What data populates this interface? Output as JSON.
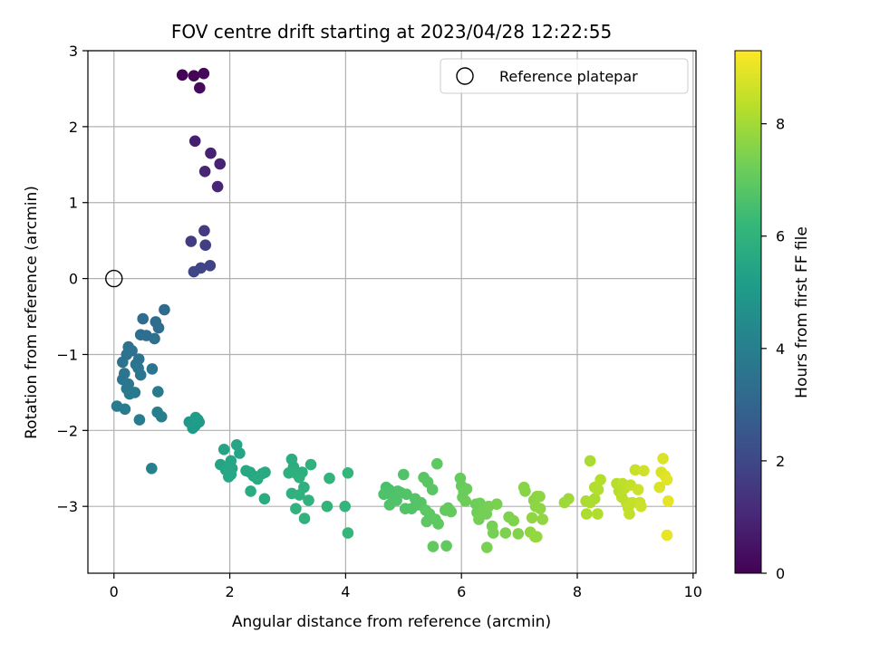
{
  "chart_data": {
    "type": "scatter",
    "title": "FOV centre drift starting at 2023/04/28 12:22:55",
    "xlabel": "Angular distance from reference (arcmin)",
    "ylabel": "Rotation from reference (arcmin)",
    "xlim": [
      -0.45,
      10.05
    ],
    "ylim": [
      -3.88,
      3.0
    ],
    "x_ticks": [
      0,
      2,
      4,
      6,
      8,
      10
    ],
    "y_ticks": [
      -3,
      -2,
      -1,
      0,
      1,
      2,
      3
    ],
    "x_tick_labels": [
      "0",
      "2",
      "4",
      "6",
      "8",
      "10"
    ],
    "y_tick_labels": [
      "−3",
      "−2",
      "−1",
      "0",
      "1",
      "2",
      "3"
    ],
    "grid": true,
    "legend": {
      "position": "top-right",
      "entries": [
        "Reference platepar"
      ]
    },
    "reference_point": {
      "x": 0,
      "y": 0
    },
    "colorbar": {
      "label": "Hours from first FF file",
      "range": [
        0,
        9.3
      ],
      "ticks": [
        0,
        2,
        4,
        6,
        8
      ],
      "tick_labels": [
        "0",
        "2",
        "4",
        "6",
        "8"
      ],
      "colormap": "viridis",
      "colors": [
        "#440154",
        "#482878",
        "#3e4a89",
        "#31688e",
        "#26828e",
        "#1f9e89",
        "#35b779",
        "#6ece58",
        "#b5de2b",
        "#fde725"
      ]
    },
    "points": [
      {
        "x": 1.18,
        "y": 2.68,
        "t": 0.05
      },
      {
        "x": 1.38,
        "y": 2.67,
        "t": 0.1
      },
      {
        "x": 1.55,
        "y": 2.7,
        "t": 0.15
      },
      {
        "x": 1.48,
        "y": 2.51,
        "t": 0.3
      },
      {
        "x": 1.4,
        "y": 1.81,
        "t": 0.8
      },
      {
        "x": 1.67,
        "y": 1.65,
        "t": 0.85
      },
      {
        "x": 1.83,
        "y": 1.51,
        "t": 0.9
      },
      {
        "x": 1.57,
        "y": 1.41,
        "t": 0.95
      },
      {
        "x": 1.79,
        "y": 1.21,
        "t": 1.0
      },
      {
        "x": 1.56,
        "y": 0.63,
        "t": 1.6
      },
      {
        "x": 1.33,
        "y": 0.49,
        "t": 1.65
      },
      {
        "x": 1.58,
        "y": 0.44,
        "t": 1.7
      },
      {
        "x": 1.66,
        "y": 0.17,
        "t": 1.85
      },
      {
        "x": 1.5,
        "y": 0.14,
        "t": 1.9
      },
      {
        "x": 1.38,
        "y": 0.09,
        "t": 1.95
      },
      {
        "x": 0.87,
        "y": -0.41,
        "t": 3.2
      },
      {
        "x": 0.5,
        "y": -0.53,
        "t": 3.25
      },
      {
        "x": 0.72,
        "y": -0.57,
        "t": 3.3
      },
      {
        "x": 0.77,
        "y": -0.65,
        "t": 3.3
      },
      {
        "x": 0.46,
        "y": -0.74,
        "t": 3.35
      },
      {
        "x": 0.56,
        "y": -0.75,
        "t": 3.35
      },
      {
        "x": 0.7,
        "y": -0.79,
        "t": 3.4
      },
      {
        "x": 0.25,
        "y": -0.9,
        "t": 3.45
      },
      {
        "x": 0.31,
        "y": -0.95,
        "t": 3.5
      },
      {
        "x": 0.22,
        "y": -1.0,
        "t": 3.5
      },
      {
        "x": 0.43,
        "y": -1.06,
        "t": 3.5
      },
      {
        "x": 0.15,
        "y": -1.1,
        "t": 3.55
      },
      {
        "x": 0.38,
        "y": -1.13,
        "t": 3.55
      },
      {
        "x": 0.42,
        "y": -1.18,
        "t": 3.6
      },
      {
        "x": 0.66,
        "y": -1.19,
        "t": 3.6
      },
      {
        "x": 0.18,
        "y": -1.25,
        "t": 3.6
      },
      {
        "x": 0.46,
        "y": -1.27,
        "t": 3.65
      },
      {
        "x": 0.15,
        "y": -1.33,
        "t": 3.65
      },
      {
        "x": 0.25,
        "y": -1.39,
        "t": 3.7
      },
      {
        "x": 0.22,
        "y": -1.45,
        "t": 3.75
      },
      {
        "x": 0.36,
        "y": -1.5,
        "t": 3.75
      },
      {
        "x": 0.27,
        "y": -1.52,
        "t": 3.8
      },
      {
        "x": 0.76,
        "y": -1.49,
        "t": 3.8
      },
      {
        "x": 0.05,
        "y": -1.68,
        "t": 3.85
      },
      {
        "x": 0.19,
        "y": -1.72,
        "t": 3.9
      },
      {
        "x": 0.44,
        "y": -1.86,
        "t": 3.9
      },
      {
        "x": 0.75,
        "y": -1.76,
        "t": 3.95
      },
      {
        "x": 0.82,
        "y": -1.82,
        "t": 4.0
      },
      {
        "x": 0.65,
        "y": -2.5,
        "t": 4.05
      },
      {
        "x": 1.3,
        "y": -1.89,
        "t": 5.0
      },
      {
        "x": 1.4,
        "y": -1.94,
        "t": 5.05
      },
      {
        "x": 1.45,
        "y": -1.86,
        "t": 5.05
      },
      {
        "x": 1.36,
        "y": -1.97,
        "t": 5.1
      },
      {
        "x": 1.47,
        "y": -1.89,
        "t": 5.1
      },
      {
        "x": 1.41,
        "y": -1.83,
        "t": 5.15
      },
      {
        "x": 1.84,
        "y": -2.45,
        "t": 5.4
      },
      {
        "x": 1.9,
        "y": -2.25,
        "t": 5.4
      },
      {
        "x": 2.12,
        "y": -2.19,
        "t": 5.45
      },
      {
        "x": 2.17,
        "y": -2.3,
        "t": 5.45
      },
      {
        "x": 2.02,
        "y": -2.4,
        "t": 5.5
      },
      {
        "x": 2.04,
        "y": -2.5,
        "t": 5.5
      },
      {
        "x": 1.93,
        "y": -2.52,
        "t": 5.5
      },
      {
        "x": 2.02,
        "y": -2.58,
        "t": 5.55
      },
      {
        "x": 1.98,
        "y": -2.61,
        "t": 5.55
      },
      {
        "x": 2.28,
        "y": -2.53,
        "t": 5.6
      },
      {
        "x": 2.35,
        "y": -2.55,
        "t": 5.6
      },
      {
        "x": 2.41,
        "y": -2.6,
        "t": 5.6
      },
      {
        "x": 2.48,
        "y": -2.64,
        "t": 5.65
      },
      {
        "x": 2.56,
        "y": -2.57,
        "t": 5.65
      },
      {
        "x": 2.61,
        "y": -2.55,
        "t": 5.65
      },
      {
        "x": 2.36,
        "y": -2.8,
        "t": 5.7
      },
      {
        "x": 2.6,
        "y": -2.9,
        "t": 5.7
      },
      {
        "x": 3.07,
        "y": -2.38,
        "t": 5.8
      },
      {
        "x": 3.1,
        "y": -2.48,
        "t": 5.8
      },
      {
        "x": 3.02,
        "y": -2.56,
        "t": 5.85
      },
      {
        "x": 3.15,
        "y": -2.57,
        "t": 5.85
      },
      {
        "x": 3.25,
        "y": -2.55,
        "t": 5.85
      },
      {
        "x": 3.2,
        "y": -2.62,
        "t": 5.9
      },
      {
        "x": 3.28,
        "y": -2.75,
        "t": 5.9
      },
      {
        "x": 3.07,
        "y": -2.83,
        "t": 5.9
      },
      {
        "x": 3.2,
        "y": -2.85,
        "t": 5.95
      },
      {
        "x": 3.36,
        "y": -2.92,
        "t": 5.95
      },
      {
        "x": 3.14,
        "y": -3.03,
        "t": 6.0
      },
      {
        "x": 3.29,
        "y": -3.16,
        "t": 6.0
      },
      {
        "x": 3.4,
        "y": -2.45,
        "t": 6.0
      },
      {
        "x": 3.72,
        "y": -2.63,
        "t": 6.05
      },
      {
        "x": 3.68,
        "y": -3.0,
        "t": 6.05
      },
      {
        "x": 4.04,
        "y": -2.56,
        "t": 6.1
      },
      {
        "x": 3.99,
        "y": -3.0,
        "t": 6.1
      },
      {
        "x": 4.04,
        "y": -3.35,
        "t": 6.15
      },
      {
        "x": 4.7,
        "y": -2.75,
        "t": 6.6
      },
      {
        "x": 4.75,
        "y": -2.78,
        "t": 6.6
      },
      {
        "x": 4.66,
        "y": -2.84,
        "t": 6.65
      },
      {
        "x": 4.8,
        "y": -2.86,
        "t": 6.65
      },
      {
        "x": 4.9,
        "y": -2.8,
        "t": 6.65
      },
      {
        "x": 4.95,
        "y": -2.82,
        "t": 6.7
      },
      {
        "x": 4.88,
        "y": -2.92,
        "t": 6.7
      },
      {
        "x": 4.76,
        "y": -2.98,
        "t": 6.7
      },
      {
        "x": 5.0,
        "y": -2.58,
        "t": 6.7
      },
      {
        "x": 5.05,
        "y": -2.84,
        "t": 6.75
      },
      {
        "x": 5.03,
        "y": -3.03,
        "t": 6.75
      },
      {
        "x": 5.14,
        "y": -3.03,
        "t": 6.75
      },
      {
        "x": 5.2,
        "y": -2.9,
        "t": 6.8
      },
      {
        "x": 5.25,
        "y": -2.98,
        "t": 6.8
      },
      {
        "x": 5.3,
        "y": -2.95,
        "t": 6.8
      },
      {
        "x": 5.35,
        "y": -2.62,
        "t": 6.85
      },
      {
        "x": 5.42,
        "y": -2.68,
        "t": 6.85
      },
      {
        "x": 5.5,
        "y": -2.78,
        "t": 6.85
      },
      {
        "x": 5.38,
        "y": -3.05,
        "t": 6.9
      },
      {
        "x": 5.45,
        "y": -3.1,
        "t": 6.9
      },
      {
        "x": 5.4,
        "y": -3.2,
        "t": 6.9
      },
      {
        "x": 5.55,
        "y": -3.17,
        "t": 6.95
      },
      {
        "x": 5.6,
        "y": -3.23,
        "t": 6.95
      },
      {
        "x": 5.58,
        "y": -2.44,
        "t": 6.95
      },
      {
        "x": 5.51,
        "y": -3.53,
        "t": 7.0
      },
      {
        "x": 5.74,
        "y": -3.52,
        "t": 7.0
      },
      {
        "x": 5.72,
        "y": -3.05,
        "t": 7.0
      },
      {
        "x": 5.77,
        "y": -3.02,
        "t": 7.05
      },
      {
        "x": 5.82,
        "y": -3.07,
        "t": 7.05
      },
      {
        "x": 5.98,
        "y": -2.63,
        "t": 7.1
      },
      {
        "x": 6.0,
        "y": -2.73,
        "t": 7.1
      },
      {
        "x": 6.04,
        "y": -2.8,
        "t": 7.15
      },
      {
        "x": 6.09,
        "y": -2.77,
        "t": 7.15
      },
      {
        "x": 6.02,
        "y": -2.88,
        "t": 7.15
      },
      {
        "x": 6.07,
        "y": -2.93,
        "t": 7.2
      },
      {
        "x": 6.25,
        "y": -2.97,
        "t": 7.2
      },
      {
        "x": 6.32,
        "y": -2.96,
        "t": 7.25
      },
      {
        "x": 6.27,
        "y": -3.08,
        "t": 7.25
      },
      {
        "x": 6.38,
        "y": -3.06,
        "t": 7.3
      },
      {
        "x": 6.43,
        "y": -3.1,
        "t": 7.3
      },
      {
        "x": 6.3,
        "y": -3.17,
        "t": 7.3
      },
      {
        "x": 6.47,
        "y": -3.0,
        "t": 7.35
      },
      {
        "x": 6.53,
        "y": -3.26,
        "t": 7.35
      },
      {
        "x": 6.55,
        "y": -3.35,
        "t": 7.35
      },
      {
        "x": 6.44,
        "y": -3.54,
        "t": 7.4
      },
      {
        "x": 6.61,
        "y": -2.97,
        "t": 7.4
      },
      {
        "x": 6.76,
        "y": -3.35,
        "t": 7.45
      },
      {
        "x": 6.82,
        "y": -3.14,
        "t": 7.45
      },
      {
        "x": 6.9,
        "y": -3.19,
        "t": 7.5
      },
      {
        "x": 6.98,
        "y": -3.36,
        "t": 7.5
      },
      {
        "x": 7.08,
        "y": -2.75,
        "t": 7.6
      },
      {
        "x": 7.1,
        "y": -2.8,
        "t": 7.6
      },
      {
        "x": 7.25,
        "y": -2.92,
        "t": 7.65
      },
      {
        "x": 7.3,
        "y": -2.87,
        "t": 7.65
      },
      {
        "x": 7.35,
        "y": -2.87,
        "t": 7.7
      },
      {
        "x": 7.28,
        "y": -3.0,
        "t": 7.7
      },
      {
        "x": 7.36,
        "y": -3.03,
        "t": 7.7
      },
      {
        "x": 7.22,
        "y": -3.15,
        "t": 7.75
      },
      {
        "x": 7.4,
        "y": -3.17,
        "t": 7.75
      },
      {
        "x": 7.19,
        "y": -3.34,
        "t": 7.75
      },
      {
        "x": 7.3,
        "y": -3.4,
        "t": 7.8
      },
      {
        "x": 7.27,
        "y": -3.4,
        "t": 7.8
      },
      {
        "x": 7.78,
        "y": -2.95,
        "t": 7.95
      },
      {
        "x": 7.85,
        "y": -2.9,
        "t": 7.95
      },
      {
        "x": 8.22,
        "y": -2.4,
        "t": 8.1
      },
      {
        "x": 8.15,
        "y": -2.93,
        "t": 8.1
      },
      {
        "x": 8.22,
        "y": -2.95,
        "t": 8.15
      },
      {
        "x": 8.3,
        "y": -2.9,
        "t": 8.15
      },
      {
        "x": 8.16,
        "y": -3.1,
        "t": 8.15
      },
      {
        "x": 8.35,
        "y": -3.1,
        "t": 8.2
      },
      {
        "x": 8.3,
        "y": -2.75,
        "t": 8.2
      },
      {
        "x": 8.4,
        "y": -2.65,
        "t": 8.25
      },
      {
        "x": 8.36,
        "y": -2.78,
        "t": 8.25
      },
      {
        "x": 8.68,
        "y": -2.7,
        "t": 8.3
      },
      {
        "x": 8.72,
        "y": -2.8,
        "t": 8.3
      },
      {
        "x": 8.77,
        "y": -2.88,
        "t": 8.35
      },
      {
        "x": 8.78,
        "y": -2.7,
        "t": 8.35
      },
      {
        "x": 8.82,
        "y": -2.76,
        "t": 8.4
      },
      {
        "x": 8.85,
        "y": -2.95,
        "t": 8.4
      },
      {
        "x": 8.88,
        "y": -3.02,
        "t": 8.45
      },
      {
        "x": 8.9,
        "y": -3.1,
        "t": 8.45
      },
      {
        "x": 8.95,
        "y": -2.95,
        "t": 8.5
      },
      {
        "x": 8.92,
        "y": -2.72,
        "t": 8.5
      },
      {
        "x": 9.0,
        "y": -2.52,
        "t": 8.55
      },
      {
        "x": 9.08,
        "y": -2.95,
        "t": 8.55
      },
      {
        "x": 9.1,
        "y": -3.0,
        "t": 8.6
      },
      {
        "x": 9.05,
        "y": -2.78,
        "t": 8.6
      },
      {
        "x": 9.15,
        "y": -2.53,
        "t": 8.65
      },
      {
        "x": 9.45,
        "y": -2.55,
        "t": 8.75
      },
      {
        "x": 9.48,
        "y": -2.37,
        "t": 8.8
      },
      {
        "x": 9.42,
        "y": -2.75,
        "t": 8.8
      },
      {
        "x": 9.52,
        "y": -2.6,
        "t": 8.85
      },
      {
        "x": 9.55,
        "y": -2.65,
        "t": 8.9
      },
      {
        "x": 9.57,
        "y": -2.93,
        "t": 8.95
      },
      {
        "x": 9.55,
        "y": -3.38,
        "t": 9.0
      }
    ]
  }
}
